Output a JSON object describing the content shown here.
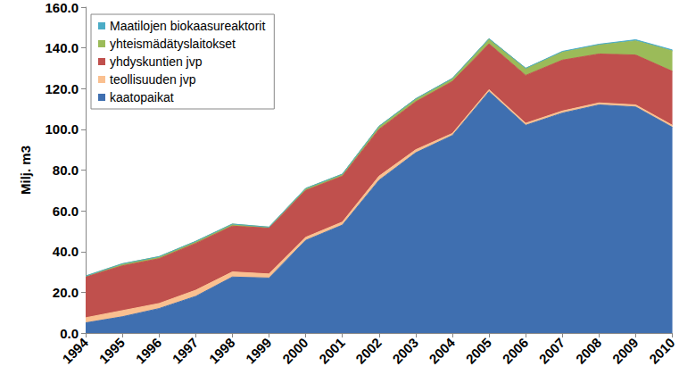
{
  "chart_data": {
    "type": "area",
    "stacked": true,
    "grid": false,
    "legend": "top-left",
    "y_label": "Milj. m3",
    "categories": [
      "1994",
      "1995",
      "1996",
      "1997",
      "1998",
      "1999",
      "2000",
      "2001",
      "2002",
      "2003",
      "2004",
      "2005",
      "2006",
      "2007",
      "2008",
      "2009",
      "2010"
    ],
    "ylim": [
      0,
      160
    ],
    "yticks": [
      {
        "value": 0,
        "label": "0.0"
      },
      {
        "value": 20,
        "label": "20.0"
      },
      {
        "value": 40,
        "label": "40.0"
      },
      {
        "value": 60,
        "label": "60.0"
      },
      {
        "value": 80,
        "label": "80.0"
      },
      {
        "value": 100,
        "label": "100.0"
      },
      {
        "value": 120,
        "label": "120.0"
      },
      {
        "value": 140,
        "label": "140.0"
      },
      {
        "value": 160,
        "label": "160.0"
      }
    ],
    "series": [
      {
        "name": "kaatopaikat",
        "color": "#3f6fb0",
        "values": [
          5,
          8,
          12,
          18,
          27.5,
          27,
          45.5,
          53,
          75,
          88.5,
          97,
          118.5,
          102,
          108,
          112,
          111,
          101
        ]
      },
      {
        "name": "teollisuuden jvp",
        "color": "#fac090",
        "values": [
          2.5,
          3,
          2.5,
          3,
          2.5,
          2,
          1.5,
          1.5,
          2,
          1.5,
          1,
          1,
          1,
          1,
          1,
          1,
          1
        ]
      },
      {
        "name": "yhdyskuntien jvp",
        "color": "#c0504d",
        "values": [
          20,
          22,
          22,
          23,
          22.5,
          22.5,
          23,
          22.5,
          23,
          23.5,
          25.5,
          22.5,
          23.5,
          25,
          24,
          24.5,
          26.5
        ]
      },
      {
        "name": "yhteismädätyslaitokset",
        "color": "#9bbb59",
        "values": [
          0.5,
          1,
          1,
          1,
          1,
          0.5,
          1,
          1,
          1.5,
          1.5,
          1.5,
          2.5,
          3.5,
          4,
          4.5,
          7,
          10
        ]
      },
      {
        "name": "Maatilojen biokaasureaktorit",
        "color": "#4bacc6",
        "values": [
          0,
          0,
          0,
          0,
          0,
          0,
          0,
          0,
          0,
          0,
          0,
          0,
          0,
          0.3,
          0.3,
          0.5,
          0.5
        ]
      }
    ]
  }
}
